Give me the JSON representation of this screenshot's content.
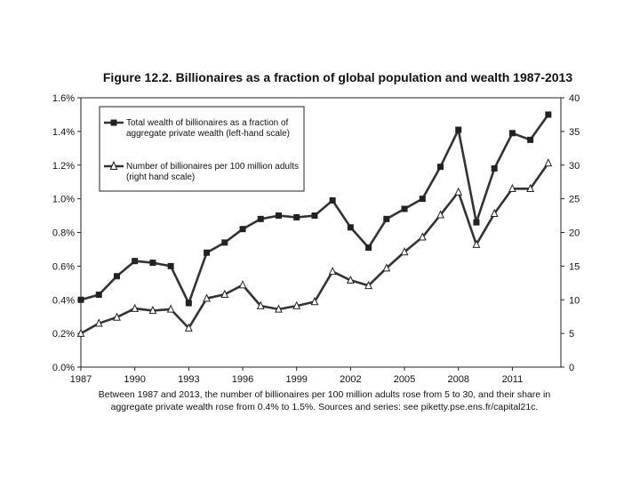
{
  "chart_data": {
    "type": "line",
    "title": "Figure 12.2. Billionaires as a fraction of global population and wealth 1987-2013",
    "x": [
      1987,
      1988,
      1989,
      1990,
      1991,
      1992,
      1993,
      1994,
      1995,
      1996,
      1997,
      1998,
      1999,
      2000,
      2001,
      2002,
      2003,
      2004,
      2005,
      2006,
      2007,
      2008,
      2009,
      2010,
      2011,
      2012,
      2013
    ],
    "xticks": [
      "1987",
      "1990",
      "1993",
      "1996",
      "1999",
      "2002",
      "2005",
      "2008",
      "2011"
    ],
    "xtick_values": [
      1987,
      1990,
      1993,
      1996,
      1999,
      2002,
      2005,
      2008,
      2011
    ],
    "xlim": [
      1987,
      2013.7
    ],
    "y_left": {
      "range": [
        0,
        1.6
      ],
      "ticks": [
        "0.0%",
        "0.2%",
        "0.4%",
        "0.6%",
        "0.8%",
        "1.0%",
        "1.2%",
        "1.4%",
        "1.6%"
      ],
      "tick_values": [
        0,
        0.2,
        0.4,
        0.6,
        0.8,
        1.0,
        1.2,
        1.4,
        1.6
      ]
    },
    "y_right": {
      "range": [
        0,
        40
      ],
      "ticks": [
        "0",
        "5",
        "10",
        "15",
        "20",
        "25",
        "30",
        "35",
        "40"
      ],
      "tick_values": [
        0,
        5,
        10,
        15,
        20,
        25,
        30,
        35,
        40
      ]
    },
    "series": [
      {
        "name": "Total wealth of billionaires as a fraction of aggregate private wealth (left-hand scale)",
        "legend_lines": [
          "Total wealth of billionaires as a fraction of",
          "aggregate private wealth (left-hand scale)"
        ],
        "axis": "left",
        "marker": "filled-square",
        "values": [
          0.4,
          0.43,
          0.54,
          0.63,
          0.62,
          0.6,
          0.38,
          0.68,
          0.74,
          0.82,
          0.88,
          0.9,
          0.89,
          0.9,
          0.99,
          0.83,
          0.71,
          0.88,
          0.94,
          1.0,
          1.19,
          1.41,
          0.86,
          1.18,
          1.39,
          1.35,
          1.5
        ]
      },
      {
        "name": "Number of billionaires per 100 million adults (right hand scale)",
        "legend_lines": [
          "Number of billionaires per 100 million adults",
          "(right hand scale)"
        ],
        "axis": "right",
        "marker": "open-triangle",
        "values": [
          5.0,
          6.5,
          7.4,
          8.7,
          8.4,
          8.6,
          5.8,
          10.2,
          10.8,
          12.2,
          9.1,
          8.6,
          9.1,
          9.7,
          14.2,
          12.9,
          12.1,
          14.7,
          17.1,
          19.3,
          22.6,
          26.0,
          18.2,
          22.8,
          26.5,
          26.5,
          30.3
        ]
      }
    ],
    "caption_lines": [
      "Between 1987 and 2013, the number of billionaires per 100 million adults rose from 5 to 30, and their share in",
      "aggregate private wealth rose from 0.4% to 1.5%. Sources and series: see piketty.pse.ens.fr/capital21c."
    ]
  },
  "colors": {
    "axis": "#222222",
    "series_line": "#333333",
    "marker_fill": "#222222",
    "triangle_fill": "#ffffff"
  }
}
